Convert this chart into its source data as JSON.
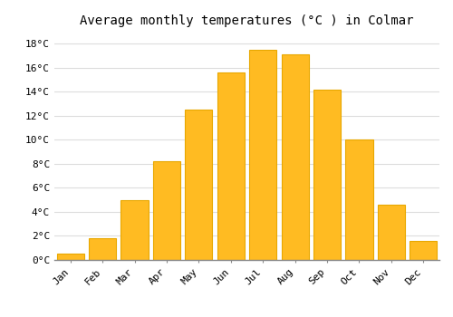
{
  "months": [
    "Jan",
    "Feb",
    "Mar",
    "Apr",
    "May",
    "Jun",
    "Jul",
    "Aug",
    "Sep",
    "Oct",
    "Nov",
    "Dec"
  ],
  "values": [
    0.5,
    1.8,
    5.0,
    8.2,
    12.5,
    15.6,
    17.5,
    17.1,
    14.2,
    10.0,
    4.6,
    1.6
  ],
  "bar_color": "#FFBB22",
  "bar_edge_color": "#E8A800",
  "title": "Average monthly temperatures (°C ) in Colmar",
  "ylim": [
    0,
    19
  ],
  "yticks": [
    0,
    2,
    4,
    6,
    8,
    10,
    12,
    14,
    16,
    18
  ],
  "ytick_labels": [
    "0°C",
    "2°C",
    "4°C",
    "6°C",
    "8°C",
    "10°C",
    "12°C",
    "14°C",
    "16°C",
    "18°C"
  ],
  "background_color": "#FFFFFF",
  "grid_color": "#DDDDDD",
  "title_fontsize": 10,
  "tick_fontsize": 8,
  "font_family": "monospace",
  "bar_width": 0.85
}
